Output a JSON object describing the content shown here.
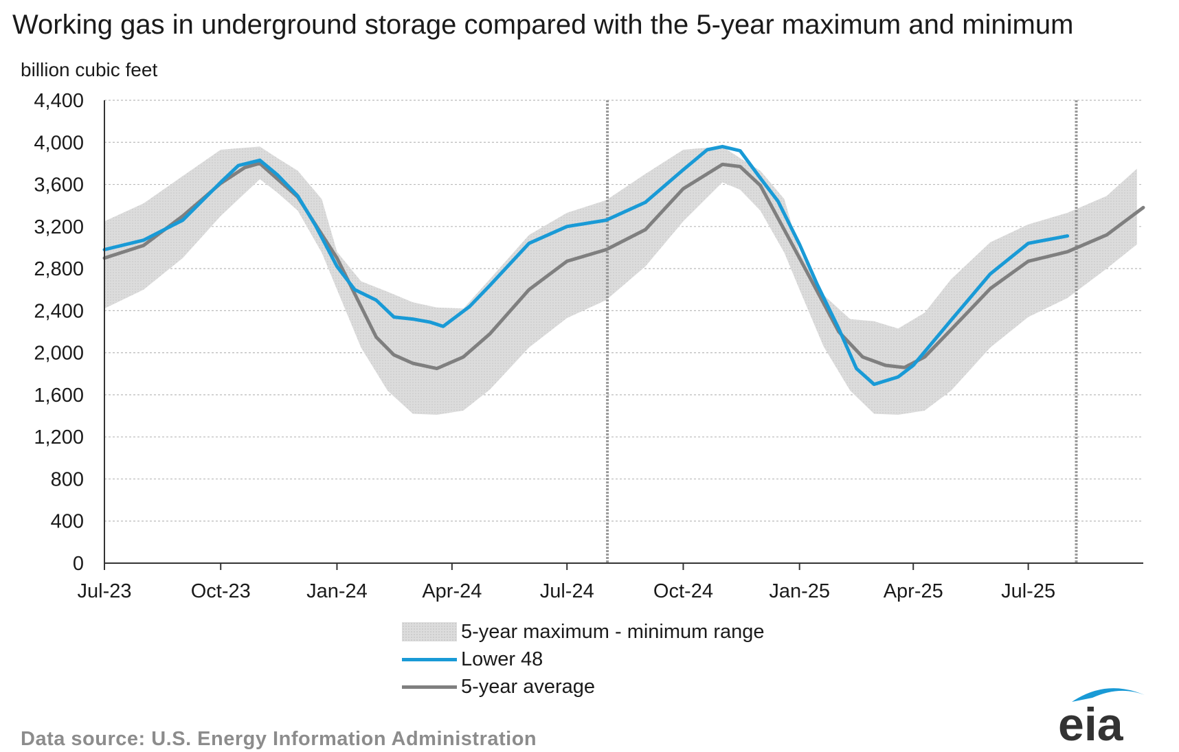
{
  "chart_data": {
    "type": "line",
    "title": "Working gas in underground  storage compared with the 5-year maximum  and minimum",
    "ylabel": "billion cubic feet",
    "xlabel": "",
    "x_domain": [
      "2023-07-01",
      "2025-09-30"
    ],
    "ylim": [
      0,
      4400
    ],
    "y_ticks": [
      "4,400",
      "4,000",
      "3,600",
      "3,200",
      "2,800",
      "2,400",
      "2,000",
      "1,600",
      "1,200",
      "800",
      "400",
      "0"
    ],
    "y_tick_values": [
      4400,
      4000,
      3600,
      3200,
      2800,
      2400,
      2000,
      1600,
      1200,
      800,
      400,
      0
    ],
    "x_ticks": [
      {
        "label": "Jul-23",
        "date": "2023-07-01"
      },
      {
        "label": "Oct-23",
        "date": "2023-10-01"
      },
      {
        "label": "Jan-24",
        "date": "2024-01-01"
      },
      {
        "label": "Apr-24",
        "date": "2024-04-01"
      },
      {
        "label": "Jul-24",
        "date": "2024-07-01"
      },
      {
        "label": "Oct-24",
        "date": "2024-10-01"
      },
      {
        "label": "Jan-25",
        "date": "2025-01-01"
      },
      {
        "label": "Apr-25",
        "date": "2025-04-01"
      },
      {
        "label": "Jul-25",
        "date": "2025-07-01"
      }
    ],
    "vertical_markers": [
      "2024-08-02",
      "2025-08-08"
    ],
    "grid": true,
    "legend_position": "bottom-center",
    "series": [
      {
        "name": "5-year maximum - minimum range",
        "kind": "band",
        "color": "#dcdcdc",
        "x": [
          "2023-07-01",
          "2023-08-01",
          "2023-09-01",
          "2023-10-01",
          "2023-11-01",
          "2023-11-15",
          "2023-12-01",
          "2023-12-20",
          "2024-01-01",
          "2024-01-20",
          "2024-02-10",
          "2024-03-01",
          "2024-03-20",
          "2024-04-10",
          "2024-05-01",
          "2024-06-01",
          "2024-07-01",
          "2024-08-01",
          "2024-09-01",
          "2024-10-01",
          "2024-11-01",
          "2024-11-15",
          "2024-12-01",
          "2024-12-20",
          "2025-01-01",
          "2025-01-20",
          "2025-02-10",
          "2025-03-01",
          "2025-03-20",
          "2025-04-10",
          "2025-05-01",
          "2025-06-01",
          "2025-07-01",
          "2025-08-01",
          "2025-09-01",
          "2025-09-25"
        ],
        "max": [
          3250,
          3420,
          3680,
          3930,
          3960,
          3850,
          3730,
          3460,
          2960,
          2680,
          2580,
          2480,
          2430,
          2420,
          2700,
          3120,
          3330,
          3450,
          3700,
          3930,
          3960,
          3850,
          3730,
          3460,
          2960,
          2550,
          2320,
          2300,
          2230,
          2380,
          2700,
          3050,
          3220,
          3330,
          3490,
          3750
        ],
        "min": [
          2420,
          2600,
          2900,
          3300,
          3650,
          3520,
          3350,
          2950,
          2600,
          2050,
          1640,
          1420,
          1410,
          1450,
          1650,
          2050,
          2330,
          2500,
          2820,
          3250,
          3620,
          3550,
          3350,
          2950,
          2600,
          2060,
          1640,
          1420,
          1410,
          1450,
          1640,
          2050,
          2340,
          2520,
          2800,
          3030
        ]
      },
      {
        "name": "Lower 48",
        "kind": "line",
        "color": "#199ad6",
        "x": [
          "2023-07-01",
          "2023-08-01",
          "2023-09-01",
          "2023-10-01",
          "2023-10-15",
          "2023-11-01",
          "2023-11-15",
          "2023-12-01",
          "2023-12-15",
          "2024-01-01",
          "2024-01-15",
          "2024-02-01",
          "2024-02-15",
          "2024-03-01",
          "2024-03-15",
          "2024-03-25",
          "2024-04-15",
          "2024-05-01",
          "2024-06-01",
          "2024-07-01",
          "2024-08-01",
          "2024-09-01",
          "2024-10-01",
          "2024-10-20",
          "2024-11-01",
          "2024-11-15",
          "2024-12-01",
          "2024-12-15",
          "2025-01-01",
          "2025-01-15",
          "2025-02-01",
          "2025-02-15",
          "2025-03-01",
          "2025-03-20",
          "2025-04-01",
          "2025-05-01",
          "2025-06-01",
          "2025-07-01",
          "2025-08-01"
        ],
        "values": [
          2980,
          3070,
          3260,
          3620,
          3780,
          3830,
          3690,
          3490,
          3210,
          2820,
          2600,
          2500,
          2340,
          2320,
          2290,
          2250,
          2440,
          2640,
          3040,
          3200,
          3260,
          3430,
          3740,
          3930,
          3960,
          3920,
          3660,
          3440,
          3030,
          2650,
          2230,
          1850,
          1700,
          1770,
          1880,
          2310,
          2750,
          3040,
          3110
        ]
      },
      {
        "name": "5-year average",
        "kind": "line",
        "color": "#7f7f7f",
        "x": [
          "2023-07-01",
          "2023-08-01",
          "2023-09-01",
          "2023-10-01",
          "2023-10-20",
          "2023-11-01",
          "2023-12-01",
          "2024-01-01",
          "2024-02-01",
          "2024-02-15",
          "2024-03-01",
          "2024-03-20",
          "2024-04-10",
          "2024-05-01",
          "2024-06-01",
          "2024-07-01",
          "2024-08-01",
          "2024-09-01",
          "2024-10-01",
          "2024-11-01",
          "2024-11-15",
          "2024-12-01",
          "2025-01-01",
          "2025-02-01",
          "2025-02-20",
          "2025-03-10",
          "2025-03-25",
          "2025-04-10",
          "2025-05-01",
          "2025-06-01",
          "2025-07-01",
          "2025-08-01",
          "2025-09-01",
          "2025-09-30"
        ],
        "values": [
          2900,
          3020,
          3300,
          3610,
          3760,
          3800,
          3480,
          2900,
          2150,
          1980,
          1900,
          1850,
          1960,
          2180,
          2600,
          2870,
          2980,
          3170,
          3560,
          3790,
          3770,
          3590,
          2900,
          2200,
          1960,
          1880,
          1860,
          1960,
          2220,
          2610,
          2870,
          2960,
          3120,
          3380
        ]
      }
    ]
  },
  "footer": {
    "source": "Data source:  U.S. Energy Information Administration",
    "logo_text": "eia"
  }
}
